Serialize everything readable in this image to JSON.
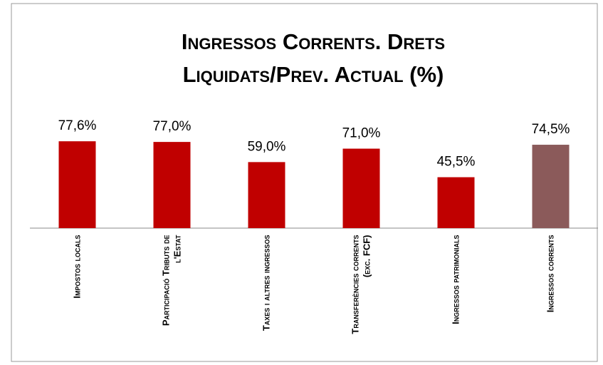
{
  "chart_data": {
    "type": "bar",
    "title": "Ingressos Corrents. Drets Liquidats/Prev. Actual (%)",
    "categories": [
      "Impostos locals",
      "Participació Tributs de l'Estat",
      "Taxes i altres ingressos",
      "Transferències corrents (exc. FCF)",
      "Ingressos patrimonials",
      "Ingressos corrents"
    ],
    "values": [
      77.6,
      77.0,
      59.0,
      71.0,
      45.5,
      74.5
    ],
    "value_labels": [
      "77,6%",
      "77,0%",
      "59,0%",
      "71,0%",
      "45,5%",
      "74,5%"
    ],
    "colors": [
      "#c00000",
      "#c00000",
      "#c00000",
      "#c00000",
      "#c00000",
      "#8b5a5a"
    ],
    "ylim": [
      0,
      100
    ]
  }
}
